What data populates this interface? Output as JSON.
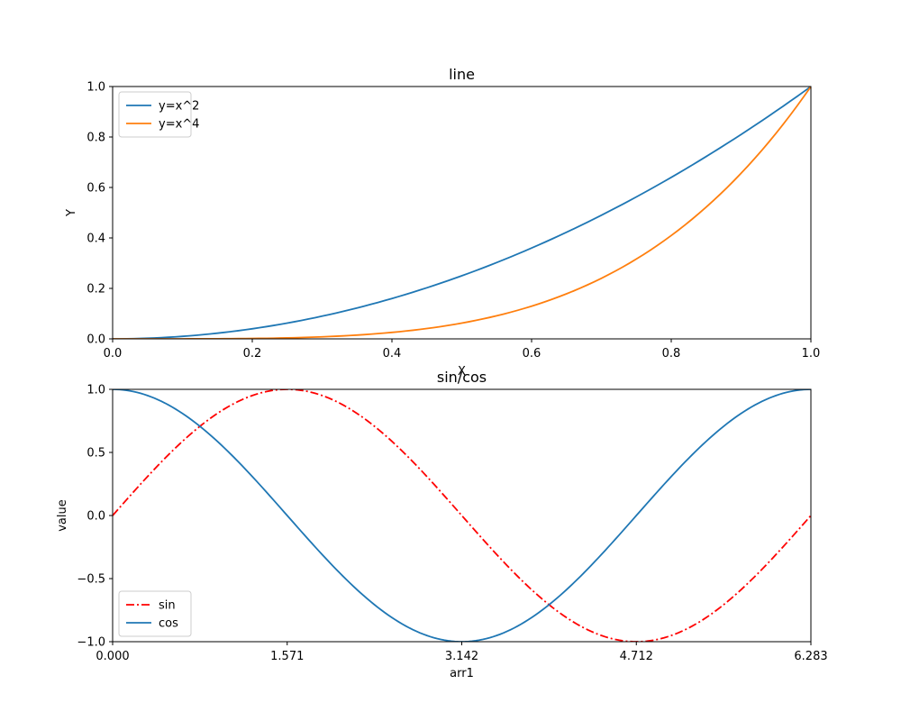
{
  "chart_data": [
    {
      "type": "line",
      "title": "line",
      "xlabel": "X",
      "ylabel": "Y",
      "xlim": [
        0.0,
        1.0
      ],
      "ylim": [
        0.0,
        1.0
      ],
      "xticks": [
        "0.0",
        "0.2",
        "0.4",
        "0.6",
        "0.8",
        "1.0"
      ],
      "yticks": [
        "0.0",
        "0.2",
        "0.4",
        "0.6",
        "0.8",
        "1.0"
      ],
      "legend_loc": "upper-left",
      "series": [
        {
          "name": "y=x^2",
          "color": "#1f77b4",
          "style": "solid",
          "function": "x^2",
          "samples": 101
        },
        {
          "name": "y=x^4",
          "color": "#ff7f0e",
          "style": "solid",
          "function": "x^4",
          "samples": 101
        }
      ]
    },
    {
      "type": "line",
      "title": "sin/cos",
      "xlabel": "arr1",
      "ylabel": "value",
      "xlim": [
        0.0,
        6.283
      ],
      "ylim": [
        -1.0,
        1.0
      ],
      "xticks": [
        "0.000",
        "1.571",
        "3.142",
        "4.712",
        "6.283"
      ],
      "yticks": [
        "−1.0",
        "−0.5",
        "0.0",
        "0.5",
        "1.0"
      ],
      "legend_loc": "lower-left",
      "series": [
        {
          "name": "sin",
          "color": "#ff0000",
          "style": "dashdot",
          "function": "sin(x)",
          "samples": 201
        },
        {
          "name": "cos",
          "color": "#1f77b4",
          "style": "solid",
          "function": "cos(x)",
          "samples": 201
        }
      ]
    }
  ]
}
